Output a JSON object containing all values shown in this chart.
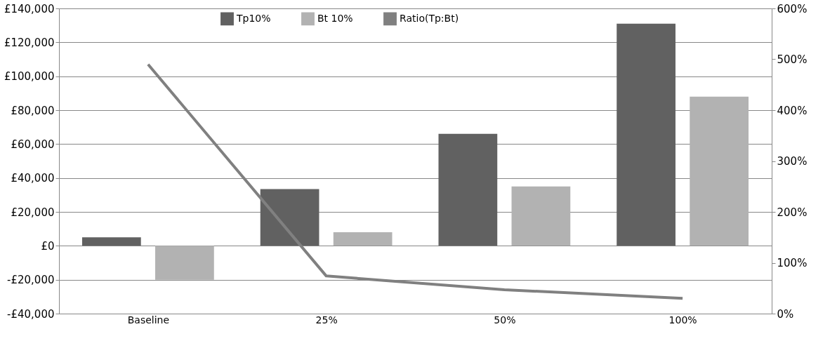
{
  "chart_data": {
    "type": "bar",
    "categories": [
      "Baseline",
      "25%",
      "50%",
      "100%"
    ],
    "series": [
      {
        "name": "Tp10%",
        "color": "#616161",
        "values": [
          5000,
          33500,
          66000,
          131000
        ]
      },
      {
        "name": "Bt 10%",
        "color": "#b2b2b2",
        "values": [
          -20000,
          8000,
          35000,
          88000
        ]
      },
      {
        "name": "Ratio(Tp:Bt)",
        "color": "#808080",
        "type": "line",
        "axis": "y2",
        "values": [
          490,
          74,
          47,
          30
        ]
      }
    ],
    "ylim": [
      -40000,
      140000
    ],
    "yticks": [
      {
        "value": -40000,
        "label": "-£40,000"
      },
      {
        "value": -20000,
        "label": "-£20,000"
      },
      {
        "value": 0,
        "label": "£0"
      },
      {
        "value": 20000,
        "label": "£20,000"
      },
      {
        "value": 40000,
        "label": "£40,000"
      },
      {
        "value": 60000,
        "label": "£60,000"
      },
      {
        "value": 80000,
        "label": "£80,000"
      },
      {
        "value": 100000,
        "label": "£100,000"
      },
      {
        "value": 120000,
        "label": "£120,000"
      },
      {
        "value": 140000,
        "label": "£140,000"
      }
    ],
    "y2lim": [
      0,
      600
    ],
    "y2ticks": [
      {
        "value": 0,
        "label": "0%"
      },
      {
        "value": 100,
        "label": "100%"
      },
      {
        "value": 200,
        "label": "200%"
      },
      {
        "value": 300,
        "label": "300%"
      },
      {
        "value": 400,
        "label": "400%"
      },
      {
        "value": 500,
        "label": "500%"
      },
      {
        "value": 600,
        "label": "600%"
      }
    ],
    "grid": "y",
    "legend": "top",
    "marker": "none",
    "line_style": "solid"
  }
}
